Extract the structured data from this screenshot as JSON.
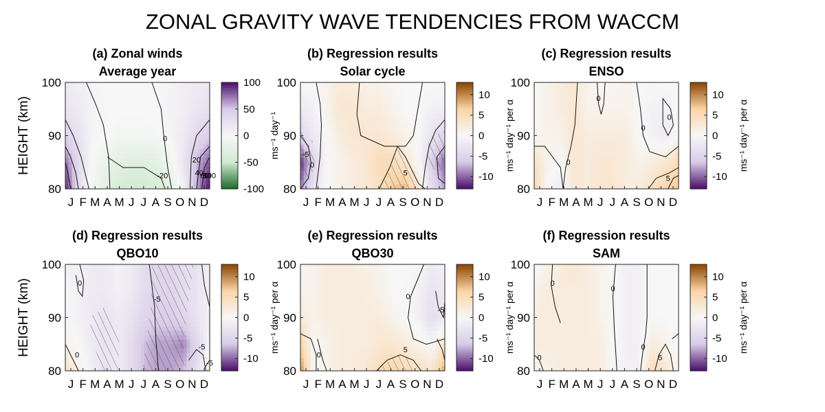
{
  "figure": {
    "title": "ZONAL GRAVITY WAVE TENDENCIES FROM WACCM"
  },
  "colors": {
    "purple_strong": "#4a0d6b",
    "purple_light": "#d8cce8",
    "green_strong": "#1b6d2c",
    "green_light": "#cfead0",
    "orange_strong": "#8a4400",
    "orange_light": "#fbd4a6",
    "neutral": "#f7f7f7"
  },
  "chart_data": [
    {
      "id": "a",
      "type": "heatmap",
      "title_line1": "(a) Zonal winds",
      "title_line2": "Average year",
      "ylabel": "HEIGHT (km)",
      "ylim": [
        80,
        100
      ],
      "yticks": [
        80,
        90,
        100
      ],
      "xcategories": [
        "J",
        "F",
        "M",
        "A",
        "M",
        "J",
        "J",
        "A",
        "S",
        "O",
        "N",
        "D"
      ],
      "colorbar": {
        "ticks": [
          -100,
          -50,
          0,
          50,
          100
        ],
        "range": [
          -100,
          100
        ],
        "label": "ms⁻¹ day⁻¹",
        "scheme": "green-purple"
      },
      "contour_labels": [
        "0",
        "-20",
        "20",
        "40",
        "60",
        "80",
        "100"
      ],
      "heights": [
        80,
        85,
        90,
        95,
        100
      ],
      "values": [
        [
          95,
          30,
          -5,
          -25,
          -40,
          -45,
          -45,
          -40,
          -25,
          10,
          60,
          100
        ],
        [
          75,
          35,
          0,
          -15,
          -25,
          -30,
          -30,
          -25,
          -10,
          20,
          55,
          80
        ],
        [
          40,
          25,
          5,
          0,
          -5,
          -5,
          -5,
          -3,
          5,
          15,
          35,
          45
        ],
        [
          20,
          15,
          5,
          2,
          0,
          0,
          0,
          0,
          5,
          10,
          20,
          25
        ],
        [
          15,
          10,
          5,
          0,
          0,
          0,
          0,
          0,
          5,
          10,
          15,
          20
        ]
      ]
    },
    {
      "id": "b",
      "type": "heatmap",
      "title_line1": "(b) Regression results",
      "title_line2": "Solar cycle",
      "ylim": [
        80,
        100
      ],
      "yticks": [
        80,
        90,
        100
      ],
      "xcategories": [
        "J",
        "F",
        "M",
        "A",
        "M",
        "J",
        "J",
        "A",
        "S",
        "O",
        "N",
        "D"
      ],
      "colorbar": {
        "ticks": [
          -10,
          -5,
          0,
          5,
          10
        ],
        "range": [
          -13,
          13
        ],
        "label": "ms⁻¹ day⁻¹ per α",
        "scheme": "purple-orange"
      },
      "contour_labels": [
        "0",
        "-5",
        "5"
      ],
      "heights": [
        80,
        85,
        90,
        95,
        100
      ],
      "values": [
        [
          -9,
          -3,
          0,
          1,
          2,
          3,
          4,
          7,
          8,
          3,
          -4,
          -8
        ],
        [
          -12,
          -5,
          0,
          1,
          2,
          3,
          5,
          5,
          3,
          0,
          -6,
          -10
        ],
        [
          -5,
          -2,
          0,
          2,
          3,
          3,
          3,
          2,
          1,
          0,
          -3,
          -5
        ],
        [
          -2,
          -1,
          1,
          3,
          3,
          2,
          2,
          1,
          0,
          0,
          -1,
          -1
        ],
        [
          0,
          0,
          1,
          2,
          2,
          1,
          1,
          0,
          0,
          0,
          0,
          0
        ]
      ]
    },
    {
      "id": "c",
      "type": "heatmap",
      "title_line1": "(c) Regression results",
      "title_line2": "ENSO",
      "ylim": [
        80,
        100
      ],
      "yticks": [
        80,
        90,
        100
      ],
      "xcategories": [
        "J",
        "F",
        "M",
        "A",
        "M",
        "J",
        "J",
        "A",
        "S",
        "O",
        "N",
        "D"
      ],
      "colorbar": {
        "ticks": [
          -10,
          -5,
          0,
          5,
          10
        ],
        "range": [
          -13,
          13
        ],
        "label": "ms⁻¹ day⁻¹ per α",
        "scheme": "purple-orange"
      },
      "contour_labels": [
        "0",
        "0",
        "0",
        "0",
        "5"
      ],
      "heights": [
        80,
        85,
        90,
        95,
        100
      ],
      "values": [
        [
          6,
          0,
          -2,
          3,
          2,
          3,
          3,
          2,
          2,
          4,
          6,
          7
        ],
        [
          4,
          1,
          0,
          3,
          2,
          3,
          3,
          2,
          1,
          2,
          3,
          5
        ],
        [
          0,
          1,
          1,
          3,
          2,
          2,
          2,
          2,
          0,
          -1,
          -2,
          0
        ],
        [
          0,
          1,
          2,
          3,
          1,
          1,
          1,
          1,
          0,
          -1,
          -1,
          0
        ],
        [
          0,
          1,
          2,
          3,
          1,
          0,
          0,
          1,
          0,
          0,
          0,
          0
        ]
      ]
    },
    {
      "id": "d",
      "type": "heatmap",
      "title_line1": "(d) Regression results",
      "title_line2": "QBO10",
      "ylabel": "HEIGHT (km)",
      "ylim": [
        80,
        100
      ],
      "yticks": [
        80,
        90,
        100
      ],
      "xcategories": [
        "J",
        "F",
        "M",
        "A",
        "M",
        "J",
        "J",
        "A",
        "S",
        "O",
        "N",
        "D"
      ],
      "colorbar": {
        "ticks": [
          -10,
          -5,
          0,
          5,
          10
        ],
        "range": [
          -13,
          13
        ],
        "label": "ms⁻¹ day⁻¹ per α",
        "scheme": "purple-orange"
      },
      "contour_labels": [
        "0",
        "0",
        "-5",
        "-5",
        "-5"
      ],
      "heights": [
        80,
        85,
        90,
        95,
        100
      ],
      "values": [
        [
          4,
          1,
          -1,
          -3,
          -2,
          -4,
          -7,
          -8,
          -8,
          -7,
          -4,
          3
        ],
        [
          1,
          0,
          -2,
          -3,
          -2,
          -4,
          -7,
          -8,
          -8,
          -9,
          -5,
          0
        ],
        [
          0,
          -1,
          -2,
          -3,
          -2,
          -3,
          -5,
          -6,
          -6,
          -5,
          -3,
          -1
        ],
        [
          0,
          -1,
          -2,
          -2,
          -1,
          -2,
          -4,
          -5,
          -5,
          -4,
          -3,
          -1
        ],
        [
          -1,
          -1,
          -2,
          -2,
          -1,
          -2,
          -4,
          -5,
          -5,
          -4,
          -3,
          -1
        ]
      ]
    },
    {
      "id": "e",
      "type": "heatmap",
      "title_line1": "(e) Regression results",
      "title_line2": "QBO30",
      "ylim": [
        80,
        100
      ],
      "yticks": [
        80,
        90,
        100
      ],
      "xcategories": [
        "J",
        "F",
        "M",
        "A",
        "M",
        "J",
        "J",
        "A",
        "S",
        "O",
        "N",
        "D"
      ],
      "colorbar": {
        "ticks": [
          -10,
          -5,
          0,
          5,
          10
        ],
        "range": [
          -13,
          13
        ],
        "label": "ms⁻¹ day⁻¹ per α",
        "scheme": "purple-orange"
      },
      "contour_labels": [
        "0",
        "0",
        "5",
        "-5"
      ],
      "heights": [
        80,
        85,
        90,
        95,
        100
      ],
      "values": [
        [
          10,
          0,
          1,
          2,
          2,
          3,
          5,
          6,
          5,
          4,
          3,
          9
        ],
        [
          6,
          0,
          1,
          2,
          2,
          2,
          3,
          3,
          2,
          1,
          0,
          3
        ],
        [
          2,
          1,
          2,
          2,
          2,
          2,
          2,
          1,
          0,
          -1,
          -4,
          -2
        ],
        [
          1,
          1,
          2,
          2,
          2,
          2,
          1,
          0,
          0,
          -1,
          -3,
          -2
        ],
        [
          0,
          1,
          2,
          2,
          2,
          1,
          1,
          0,
          0,
          0,
          -2,
          -1
        ]
      ]
    },
    {
      "id": "f",
      "type": "heatmap",
      "title_line1": "(f) Regression results",
      "title_line2": "SAM",
      "ylim": [
        80,
        100
      ],
      "yticks": [
        80,
        90,
        100
      ],
      "xcategories": [
        "J",
        "F",
        "M",
        "A",
        "M",
        "J",
        "J",
        "A",
        "S",
        "O",
        "N",
        "D"
      ],
      "colorbar": {
        "ticks": [
          -10,
          -5,
          0,
          5,
          10
        ],
        "range": [
          -13,
          13
        ],
        "label": "ms⁻¹ day⁻¹ per α",
        "scheme": "purple-orange"
      },
      "contour_labels": [
        "0",
        "0",
        "0",
        "0",
        "5"
      ],
      "heights": [
        80,
        85,
        90,
        95,
        100
      ],
      "values": [
        [
          1,
          1,
          2,
          2,
          2,
          2,
          0,
          -1,
          -1,
          5,
          3,
          0
        ],
        [
          2,
          2,
          2,
          2,
          2,
          2,
          0,
          -1,
          -1,
          2,
          1,
          0
        ],
        [
          2,
          2,
          2,
          2,
          2,
          1,
          0,
          -1,
          -1,
          0,
          0,
          0
        ],
        [
          1,
          2,
          2,
          2,
          2,
          1,
          0,
          -1,
          -1,
          0,
          0,
          0
        ],
        [
          0,
          1,
          2,
          3,
          2,
          1,
          0,
          -1,
          -1,
          0,
          0,
          0
        ]
      ]
    }
  ]
}
